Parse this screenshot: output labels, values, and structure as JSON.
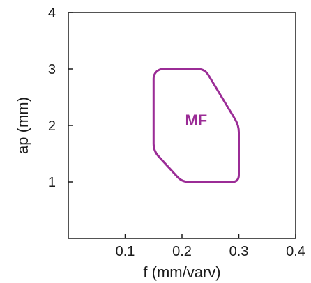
{
  "chart_data": {
    "type": "area",
    "xlabel": "f (mm/varv)",
    "ylabel": "ap (mm)",
    "xlim": [
      0,
      0.4
    ],
    "ylim": [
      0,
      4
    ],
    "x_ticks": [
      "0.1",
      "0.2",
      "0.3",
      "0.4"
    ],
    "y_ticks": [
      "1",
      "2",
      "3",
      "4"
    ],
    "grid": false,
    "series": [
      {
        "name": "MF",
        "color": "#9b2c96",
        "points": [
          [
            0.16,
            3.0
          ],
          [
            0.24,
            3.0
          ],
          [
            0.3,
            2.0
          ],
          [
            0.3,
            1.0
          ],
          [
            0.2,
            1.0
          ],
          [
            0.15,
            1.55
          ],
          [
            0.15,
            2.9
          ]
        ],
        "label_position": [
          0.225,
          2.1
        ]
      }
    ]
  }
}
